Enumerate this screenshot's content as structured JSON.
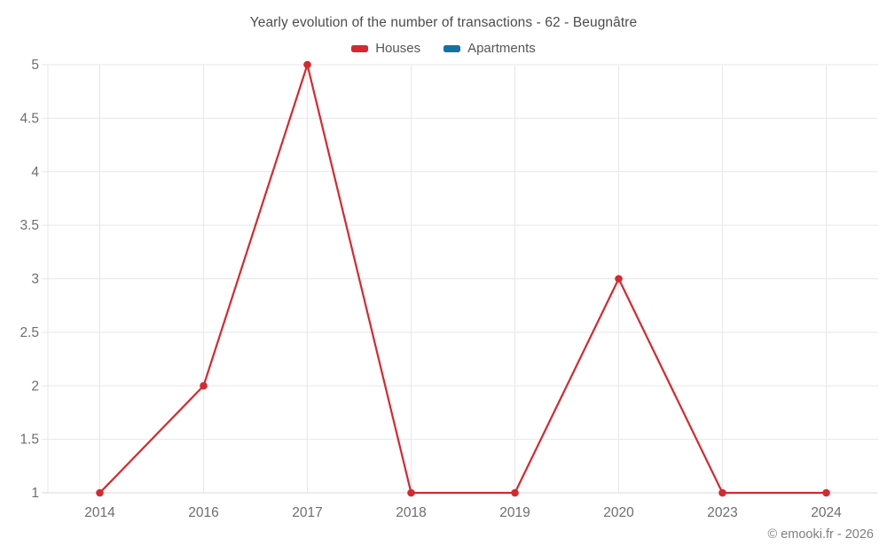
{
  "title": "Yearly evolution of the number of transactions - 62 - Beugnâtre",
  "footer": "© emooki.fr - 2026",
  "legend": [
    {
      "label": "Houses",
      "color": "#d7282f"
    },
    {
      "label": "Apartments",
      "color": "#1272a5"
    }
  ],
  "colors": {
    "houses_red": "#d7282f",
    "apartments_blue": "#1272a5",
    "gridline": "#e7e7e7",
    "baseline": "#d9d9d9",
    "tick_label": "#6e6e6e",
    "title_text": "#4c4c4c",
    "footer_text": "#7f7f7f"
  },
  "chart_data": {
    "type": "line",
    "title": "Yearly evolution of the number of transactions - 62 - Beugnâtre",
    "categories": [
      "2014",
      "2016",
      "2017",
      "2018",
      "2019",
      "2020",
      "2023",
      "2024"
    ],
    "series": [
      {
        "name": "Houses",
        "color": "#d7282f",
        "values": [
          1,
          2,
          5,
          1,
          1,
          3,
          1,
          1
        ]
      },
      {
        "name": "Apartments",
        "color": "#1272a5",
        "values": []
      }
    ],
    "xlabel": "",
    "ylabel": "",
    "ylim": [
      1,
      5
    ],
    "yticks": [
      1,
      1.5,
      2,
      2.5,
      3,
      3.5,
      4,
      4.5,
      5
    ],
    "grid": true,
    "legend_position": "top"
  }
}
